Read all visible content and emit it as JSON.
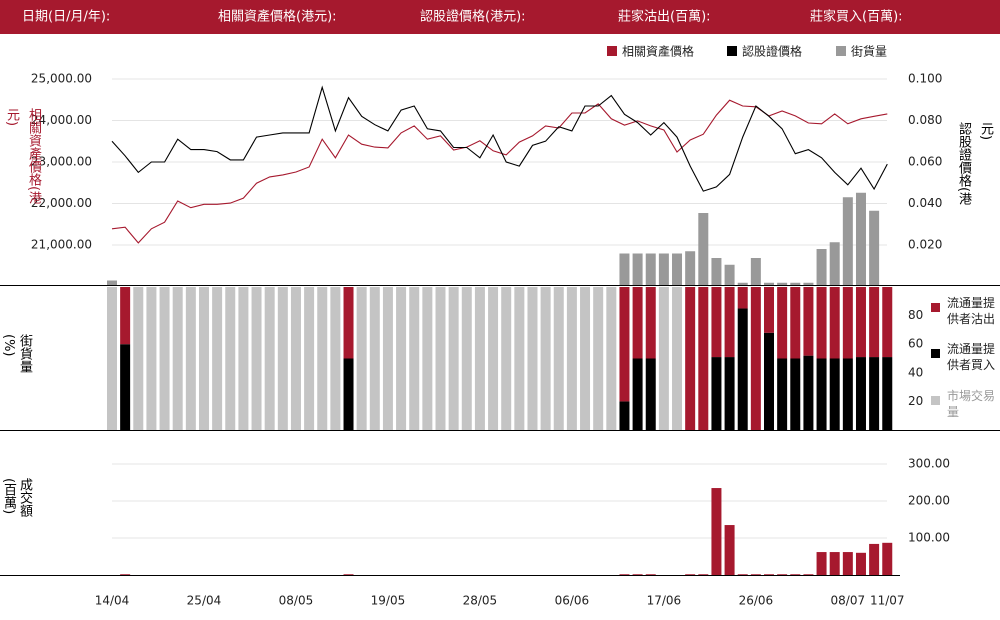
{
  "header": {
    "labels": [
      "日期(日/月/年):",
      "相關資產價格(港元):",
      "認股證價格(港元):",
      "莊家沽出(百萬):",
      "莊家買入(百萬):"
    ]
  },
  "chart_data": [
    {
      "type": "line",
      "y_label": "相關資產價格(港元)",
      "y2_label": "認股證價格(港元)",
      "ylim": [
        20000,
        25500
      ],
      "yticks": [
        {
          "value": 21000,
          "label": "21,000.00"
        },
        {
          "value": 22000,
          "label": "22,000.00"
        },
        {
          "value": 23000,
          "label": "23,000.00"
        },
        {
          "value": 24000,
          "label": "24,000.00"
        },
        {
          "value": 25000,
          "label": "25,000.00"
        }
      ],
      "y2lim": [
        0,
        0.11
      ],
      "y2ticks": [
        {
          "value": 0.02,
          "label": "0.020"
        },
        {
          "value": 0.04,
          "label": "0.040"
        },
        {
          "value": 0.06,
          "label": "0.060"
        },
        {
          "value": 0.08,
          "label": "0.080"
        },
        {
          "value": 0.1,
          "label": "0.100"
        }
      ],
      "y3lim": [
        0,
        100
      ],
      "grid": true,
      "series": [
        {
          "name": "相關資產價格",
          "color": "#a6192e",
          "values": [
            21390,
            21430,
            21050,
            21390,
            21550,
            22060,
            21900,
            21980,
            21980,
            22010,
            22130,
            22490,
            22640,
            22690,
            22760,
            22880,
            23550,
            23100,
            23650,
            23430,
            23360,
            23340,
            23700,
            23870,
            23550,
            23630,
            23290,
            23360,
            23510,
            23270,
            23170,
            23480,
            23630,
            23870,
            23820,
            24180,
            24180,
            24400,
            24040,
            23890,
            23990,
            23870,
            23770,
            23240,
            23530,
            23670,
            24130,
            24490,
            24350,
            24330,
            24110,
            24230,
            24110,
            23940,
            23920,
            24160,
            23920,
            24040,
            24100,
            24160
          ]
        },
        {
          "name": "認股證價格",
          "color": "#000000",
          "axis": "y2",
          "values": [
            0.07,
            0.063,
            0.055,
            0.06,
            0.06,
            0.071,
            0.066,
            0.066,
            0.065,
            0.061,
            0.061,
            0.072,
            0.073,
            0.074,
            0.074,
            0.074,
            0.096,
            0.075,
            0.091,
            0.082,
            0.078,
            0.075,
            0.085,
            0.087,
            0.076,
            0.075,
            0.067,
            0.067,
            0.062,
            0.073,
            0.06,
            0.058,
            0.068,
            0.07,
            0.077,
            0.075,
            0.087,
            0.087,
            0.092,
            0.083,
            0.079,
            0.073,
            0.079,
            0.072,
            0.058,
            0.046,
            0.048,
            0.054,
            0.072,
            0.087,
            0.082,
            0.076,
            0.064,
            0.066,
            0.062,
            0.055,
            0.049,
            0.057,
            0.047,
            0.059
          ]
        },
        {
          "name": "街貨量",
          "color": "#999999",
          "axis": "y3",
          "kind": "bar",
          "values": [
            2,
            0,
            0,
            0,
            0,
            0,
            0,
            0,
            0,
            0,
            0,
            0,
            0,
            0,
            0,
            0,
            0,
            0,
            0,
            0,
            0,
            0,
            0,
            0,
            0,
            0,
            0,
            0,
            0,
            0,
            0,
            0,
            0,
            0,
            0,
            0,
            0,
            0,
            0,
            14,
            14,
            14,
            14,
            14,
            15,
            32,
            12,
            9,
            1,
            12,
            1,
            1,
            1,
            1,
            16,
            19,
            39,
            41,
            33,
            0
          ]
        }
      ]
    },
    {
      "type": "stacked_bar",
      "y_label": "街貨量(%)",
      "ylim": [
        0,
        100
      ],
      "yticks": [
        20,
        40,
        60,
        80
      ],
      "series": [
        {
          "name": "流通量提供者沽出",
          "color": "#a6192e",
          "values": [
            0,
            40,
            0,
            0,
            0,
            0,
            0,
            0,
            0,
            0,
            0,
            0,
            0,
            0,
            0,
            0,
            0,
            0,
            50,
            0,
            0,
            0,
            0,
            0,
            0,
            0,
            0,
            0,
            0,
            0,
            0,
            0,
            0,
            0,
            0,
            0,
            0,
            0,
            0,
            80,
            50,
            50,
            0,
            0,
            100,
            100,
            49,
            49,
            15,
            100,
            32,
            50,
            50,
            48,
            50,
            50,
            50,
            49,
            49,
            49
          ]
        },
        {
          "name": "流通量提供者買入",
          "color": "#000000",
          "values": [
            0,
            60,
            0,
            0,
            0,
            0,
            0,
            0,
            0,
            0,
            0,
            0,
            0,
            0,
            0,
            0,
            0,
            0,
            50,
            0,
            0,
            0,
            0,
            0,
            0,
            0,
            0,
            0,
            0,
            0,
            0,
            0,
            0,
            0,
            0,
            0,
            0,
            0,
            0,
            20,
            50,
            50,
            0,
            0,
            0,
            0,
            51,
            51,
            85,
            0,
            68,
            50,
            50,
            52,
            50,
            50,
            50,
            51,
            51,
            51
          ]
        },
        {
          "name": "市場交易量",
          "color": "#c4c4c4",
          "values": [
            100,
            0,
            100,
            100,
            100,
            100,
            100,
            100,
            100,
            100,
            100,
            100,
            100,
            100,
            100,
            100,
            100,
            100,
            0,
            100,
            100,
            100,
            100,
            100,
            100,
            100,
            100,
            100,
            100,
            100,
            100,
            100,
            100,
            100,
            100,
            100,
            100,
            100,
            100,
            0,
            0,
            0,
            100,
            100,
            0,
            0,
            0,
            0,
            0,
            0,
            0,
            0,
            0,
            0,
            0,
            0,
            0,
            0,
            0,
            0
          ]
        }
      ]
    },
    {
      "type": "bar",
      "y_label": "成交額(百萬)",
      "color": "#a6192e",
      "ylim": [
        0,
        350
      ],
      "grid": true,
      "yticks": [
        {
          "value": 100,
          "label": "100.00"
        },
        {
          "value": 200,
          "label": "200.00"
        },
        {
          "value": 300,
          "label": "300.00"
        }
      ],
      "categories": [
        "14/04",
        null,
        null,
        null,
        null,
        null,
        null,
        "25/04",
        null,
        null,
        null,
        null,
        null,
        null,
        "08/05",
        null,
        null,
        null,
        null,
        null,
        null,
        "19/05",
        null,
        null,
        null,
        null,
        null,
        null,
        "28/05",
        null,
        null,
        null,
        null,
        null,
        null,
        "06/06",
        null,
        null,
        null,
        null,
        null,
        null,
        "17/06",
        null,
        null,
        null,
        null,
        null,
        null,
        "26/06",
        null,
        null,
        null,
        null,
        null,
        null,
        "08/07",
        null,
        null,
        "11/07"
      ],
      "values": [
        0,
        2,
        0,
        0,
        0,
        0,
        0,
        0,
        0,
        0,
        0,
        0,
        0,
        0,
        0,
        0,
        0,
        0,
        2,
        0,
        0,
        0,
        0,
        0,
        0,
        0,
        0,
        0,
        0,
        0,
        0,
        0,
        0,
        0,
        0,
        0,
        0,
        0,
        0,
        2,
        2,
        2,
        0,
        0,
        2,
        2,
        235,
        135,
        2,
        2,
        2,
        2,
        2,
        2,
        62,
        62,
        62,
        60,
        84,
        87
      ]
    }
  ]
}
